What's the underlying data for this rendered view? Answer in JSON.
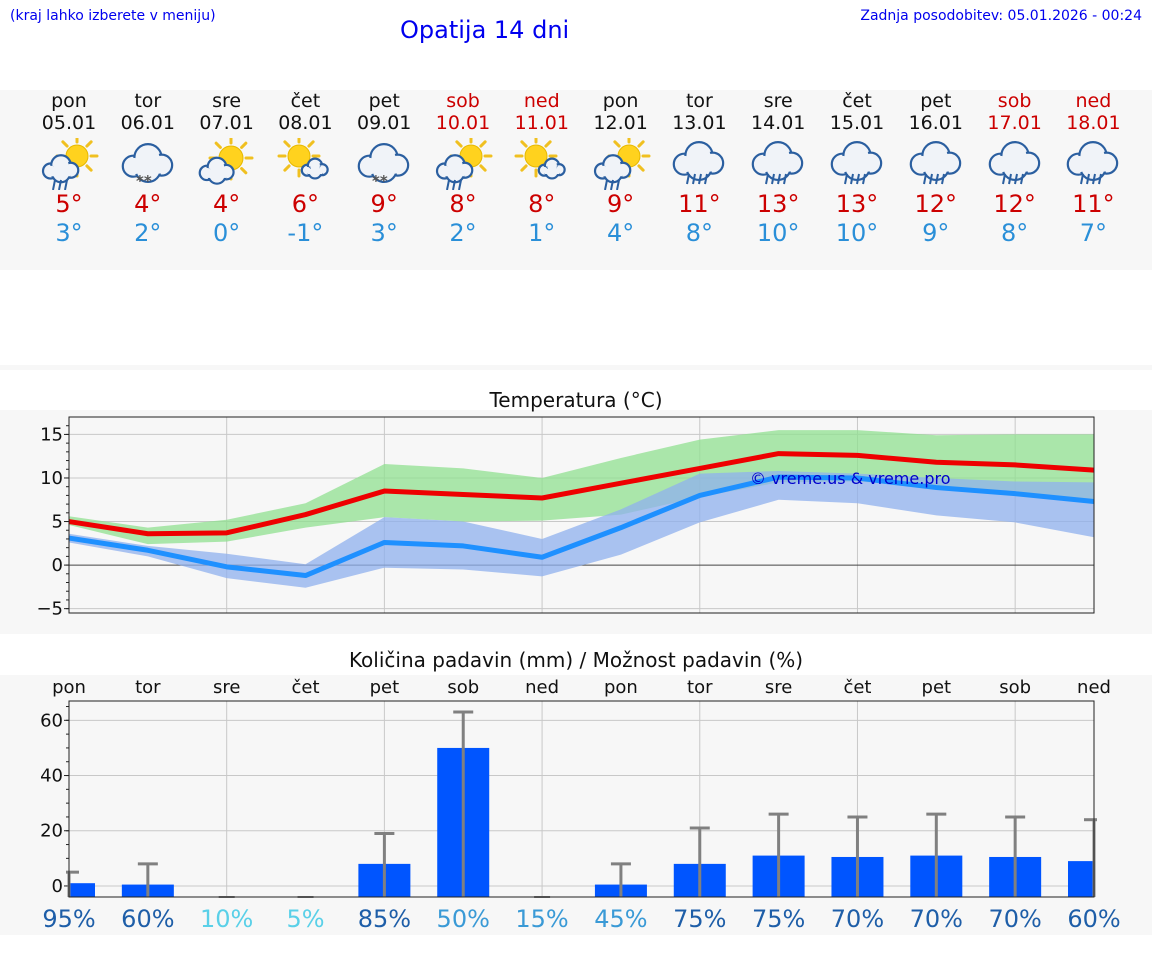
{
  "header": {
    "location_hint": "(kraj lahko izberete v meniju)",
    "title": "Opatija 14 dni",
    "updated": "Zadnja posodobitev: 05.01.2026 - 00:24"
  },
  "days": [
    {
      "name": "pon",
      "date": "05.01",
      "weekend": false,
      "icon": "sun-cloud-rain-icon",
      "max": "5°",
      "min": "3°"
    },
    {
      "name": "tor",
      "date": "06.01",
      "weekend": false,
      "icon": "cloud-snow-icon",
      "max": "4°",
      "min": "2°"
    },
    {
      "name": "sre",
      "date": "07.01",
      "weekend": false,
      "icon": "sun-cloud-icon",
      "max": "4°",
      "min": "0°"
    },
    {
      "name": "čet",
      "date": "08.01",
      "weekend": false,
      "icon": "sun-small-cloud-icon",
      "max": "6°",
      "min": "-1°"
    },
    {
      "name": "pet",
      "date": "09.01",
      "weekend": false,
      "icon": "cloud-snow-icon",
      "max": "9°",
      "min": "3°"
    },
    {
      "name": "sob",
      "date": "10.01",
      "weekend": true,
      "icon": "sun-cloud-rain-icon",
      "max": "8°",
      "min": "2°"
    },
    {
      "name": "ned",
      "date": "11.01",
      "weekend": true,
      "icon": "sun-small-cloud-icon",
      "max": "8°",
      "min": "1°"
    },
    {
      "name": "pon",
      "date": "12.01",
      "weekend": false,
      "icon": "sun-cloud-rain-icon",
      "max": "9°",
      "min": "4°"
    },
    {
      "name": "tor",
      "date": "13.01",
      "weekend": false,
      "icon": "cloud-rain-icon",
      "max": "11°",
      "min": "8°"
    },
    {
      "name": "sre",
      "date": "14.01",
      "weekend": false,
      "icon": "cloud-rain-icon",
      "max": "13°",
      "min": "10°"
    },
    {
      "name": "čet",
      "date": "15.01",
      "weekend": false,
      "icon": "cloud-rain-icon",
      "max": "13°",
      "min": "10°"
    },
    {
      "name": "pet",
      "date": "16.01",
      "weekend": false,
      "icon": "cloud-rain-icon",
      "max": "12°",
      "min": "9°"
    },
    {
      "name": "sob",
      "date": "17.01",
      "weekend": true,
      "icon": "cloud-rain-icon",
      "max": "12°",
      "min": "8°"
    },
    {
      "name": "ned",
      "date": "18.01",
      "weekend": true,
      "icon": "cloud-rain-icon",
      "max": "11°",
      "min": "7°"
    }
  ],
  "colors": {
    "max_line": "#ee0000",
    "min_line": "#1e90ff",
    "max_band": "#90e090",
    "min_band": "#8fb0ee",
    "bar": "#0055ff",
    "error": "#808080",
    "weekend": "#cc0000"
  },
  "chart_data": [
    {
      "type": "line",
      "title": "Temperatura (°C)",
      "x": [
        0,
        1,
        2,
        3,
        4,
        5,
        6,
        7,
        8,
        9,
        10,
        11,
        12,
        13
      ],
      "ylim": [
        -5.5,
        17
      ],
      "yticks": [
        15,
        10,
        5,
        0,
        -5
      ],
      "ytick_labels": [
        "15",
        "10",
        "5",
        "0",
        "−5"
      ],
      "watermark": "© vreme.us & vreme.pro",
      "series": [
        {
          "name": "max",
          "values": [
            5,
            3.6,
            3.7,
            5.8,
            8.5,
            8.1,
            7.7,
            9.4,
            11.1,
            12.8,
            12.6,
            11.8,
            11.5,
            10.9
          ],
          "band_low": [
            4.6,
            2.4,
            2.7,
            4.3,
            5.5,
            5.0,
            5.1,
            5.8,
            7.8,
            9.5,
            9.6,
            9.0,
            8.5,
            7.0
          ],
          "band_high": [
            5.6,
            4.3,
            5.2,
            7.1,
            11.6,
            11.1,
            10.0,
            12.3,
            14.4,
            15.5,
            15.5,
            14.9,
            15.0,
            15.0
          ]
        },
        {
          "name": "min",
          "values": [
            3.1,
            1.7,
            -0.2,
            -1.2,
            2.6,
            2.2,
            0.9,
            4.3,
            8.0,
            10.1,
            10.0,
            8.9,
            8.2,
            7.3
          ],
          "band_low": [
            2.6,
            1.0,
            -1.5,
            -2.6,
            -0.3,
            -0.5,
            -1.3,
            1.2,
            4.9,
            7.5,
            7.1,
            5.7,
            4.9,
            3.2
          ],
          "band_high": [
            3.6,
            2.2,
            1.3,
            0.1,
            5.5,
            5.0,
            3.0,
            6.4,
            10.5,
            10.8,
            10.5,
            10.0,
            9.6,
            9.5
          ]
        }
      ]
    },
    {
      "type": "bar",
      "title": "Količina padavin (mm) / Možnost padavin (%)",
      "categories": [
        "pon",
        "tor",
        "sre",
        "čet",
        "pet",
        "sob",
        "ned",
        "pon",
        "tor",
        "sre",
        "čet",
        "pet",
        "sob",
        "ned"
      ],
      "values": [
        1,
        0.5,
        0,
        0,
        8,
        50,
        0,
        0.5,
        8,
        11,
        10.5,
        11,
        10.5,
        9
      ],
      "err_high": [
        5,
        8,
        0,
        0,
        19,
        63,
        0,
        8,
        21,
        26,
        25,
        26,
        25,
        24
      ],
      "ylim": [
        -4,
        67
      ],
      "yticks": [
        60,
        40,
        20,
        0
      ],
      "ytick_labels": [
        "60",
        "40",
        "20",
        "0"
      ],
      "probability": [
        "95%",
        "60%",
        "10%",
        "5%",
        "85%",
        "50%",
        "15%",
        "45%",
        "75%",
        "75%",
        "70%",
        "70%",
        "70%",
        "60%"
      ],
      "probability_colors": [
        "#1e5ea8",
        "#1e5ea8",
        "#5ad0e8",
        "#5ad0e8",
        "#1e5ea8",
        "#3a9ad6",
        "#3a9ad6",
        "#3a9ad6",
        "#1e5ea8",
        "#1e5ea8",
        "#1e5ea8",
        "#1e5ea8",
        "#1e5ea8",
        "#1e5ea8"
      ]
    }
  ]
}
